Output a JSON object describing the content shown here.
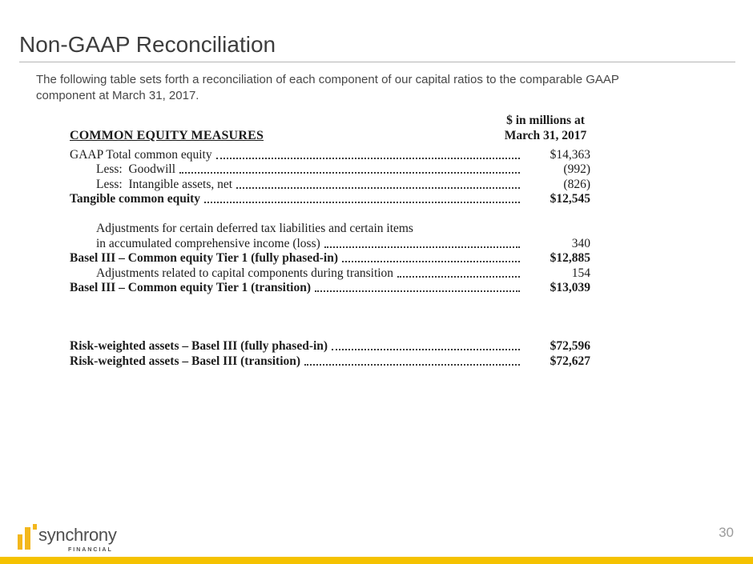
{
  "slide": {
    "title": "Non-GAAP Reconciliation",
    "intro": "The following table sets forth a reconciliation of each component of our capital ratios to the comparable GAAP component at March 31, 2017.",
    "page_number": "30"
  },
  "table": {
    "header_line1": "$ in millions at",
    "header_line2": "March 31, 2017",
    "section_title": "COMMON EQUITY MEASURES",
    "rows": [
      {
        "label": "GAAP Total common equity",
        "value": "$14,363"
      },
      {
        "label": "Less:  Goodwill",
        "value": "(992)"
      },
      {
        "label": "Less:  Intangible assets, net",
        "value": "(826)"
      },
      {
        "label": "Tangible common equity",
        "value": "$12,545"
      },
      {
        "label": "Adjustments for certain deferred tax liabilities and certain items",
        "value": ""
      },
      {
        "label": "in accumulated comprehensive income (loss)",
        "value": "340"
      },
      {
        "label": "Basel III – Common equity Tier 1 (fully phased-in)",
        "value": "$12,885"
      },
      {
        "label": "Adjustments related to capital components during transition",
        "value": "154"
      },
      {
        "label": "Basel III – Common equity Tier 1 (transition)",
        "value": "$13,039"
      },
      {
        "label": "Risk-weighted assets – Basel III (fully phased-in)",
        "value": "$72,596"
      },
      {
        "label": "Risk-weighted assets – Basel III (transition)",
        "value": "$72,627"
      }
    ]
  },
  "footer": {
    "logo_text": "synchrony",
    "logo_subtext": "FINANCIAL"
  },
  "colors": {
    "accent_gold": "#F5C200",
    "logo_gold": "#F3B71C"
  }
}
